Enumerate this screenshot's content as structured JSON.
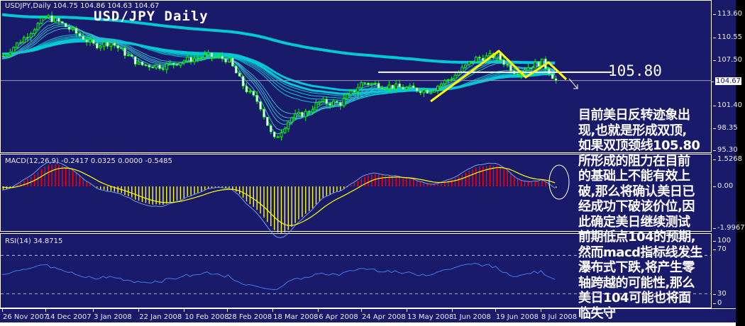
{
  "chart_data": [
    {
      "type": "candlestick",
      "title": "USD/JPY Daily",
      "header": "USDJPY,Daily  104.75 104.86 104.63 104.67",
      "ohlc_last": {
        "open": 104.75,
        "high": 104.86,
        "low": 104.63,
        "close": 104.67
      },
      "current_price_label": "104.67",
      "y_ticks": [
        "113.60",
        "110.55",
        "107.50",
        "101.40",
        "98.35",
        "95.30"
      ],
      "ylim": [
        95.3,
        115.5
      ],
      "x_ticks": [
        "26 Nov 2007",
        "14 Dec 2007",
        "3 Jan 2008",
        "22 Jan 2008",
        "10 Feb 2008",
        "28 Feb 2008",
        "18 Mar 2008",
        "6 Apr 2008",
        "24 Apr 2008",
        "13 May 2008",
        "1 Jun 2008",
        "19 Jun 2008",
        "8 Jul 2008"
      ],
      "approx_closes": [
        [
          "2007-11-26",
          108.0
        ],
        [
          "2007-12-05",
          110.5
        ],
        [
          "2007-12-14",
          113.3
        ],
        [
          "2007-12-20",
          112.4
        ],
        [
          "2008-01-03",
          109.4
        ],
        [
          "2008-01-10",
          109.8
        ],
        [
          "2008-01-22",
          106.8
        ],
        [
          "2008-02-01",
          106.6
        ],
        [
          "2008-02-10",
          107.4
        ],
        [
          "2008-02-20",
          108.0
        ],
        [
          "2008-02-28",
          107.5
        ],
        [
          "2008-03-06",
          103.6
        ],
        [
          "2008-03-12",
          101.6
        ],
        [
          "2008-03-18",
          96.6
        ],
        [
          "2008-03-25",
          99.6
        ],
        [
          "2008-04-01",
          100.4
        ],
        [
          "2008-04-06",
          101.8
        ],
        [
          "2008-04-15",
          101.6
        ],
        [
          "2008-04-24",
          104.4
        ],
        [
          "2008-05-03",
          104.0
        ],
        [
          "2008-05-13",
          103.6
        ],
        [
          "2008-05-22",
          103.3
        ],
        [
          "2008-06-01",
          105.2
        ],
        [
          "2008-06-10",
          107.6
        ],
        [
          "2008-06-19",
          108.0
        ],
        [
          "2008-06-27",
          105.8
        ],
        [
          "2008-07-08",
          107.2
        ],
        [
          "2008-07-14",
          104.67
        ]
      ],
      "annotations": {
        "neckline_label": "105.80",
        "neckline_value": 105.8,
        "double_top_color": "#ffff00"
      },
      "colors": {
        "background": "#1a1a6b",
        "candle_up": "#00ff00",
        "candle_body": "#ffffff",
        "ma_lines": "#00c8d8"
      }
    },
    {
      "type": "bar+line",
      "label": "MACD(12,26,9) -0.2417 0.0325 0.0000 -0.5485",
      "values": [
        -0.2417,
        0.0325,
        0.0,
        -0.5485
      ],
      "y_ticks": [
        "1.5268",
        "0.00",
        "-1.9967"
      ],
      "colors": {
        "positive": "#ff0000",
        "negative": "#ffff00",
        "signal": "#ffff00",
        "main": "#6fa0e0"
      }
    },
    {
      "type": "line",
      "label": "RSI(14) 34.8715",
      "value": 34.8715,
      "y_ticks": [
        "100",
        "70",
        "30",
        "0"
      ],
      "levels": [
        70,
        30
      ],
      "colors": {
        "line": "#3c7cf0"
      }
    }
  ],
  "note_lines": [
    "目前美日反转迹象出",
    "现,也就是形成双顶,",
    "如果双顶颈线105.80",
    "所形成的阻力在目前",
    "的基础上不能有效上",
    "破,那么将确认美日已",
    "经成功下破该价位,因",
    "此确定美日继续测试",
    "前期低点104的预期,",
    "然而macd指标线发生",
    "瀑布式下跌,将产生零",
    "轴跨越的可能性,那么",
    "美日104可能也将面",
    "临失守"
  ]
}
